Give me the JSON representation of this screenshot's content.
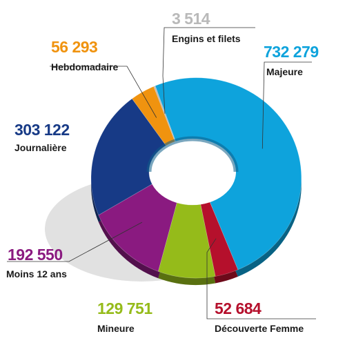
{
  "chart_data": {
    "type": "pie",
    "variant": "donut",
    "series": [
      {
        "name": "Majeure",
        "value_label": "732 279",
        "value": 732279,
        "color": "#0ea3dc"
      },
      {
        "name": "Découverte Femme",
        "value_label": "52 684",
        "value": 52684,
        "color": "#b5102c"
      },
      {
        "name": "Mineure",
        "value_label": "129 751",
        "value": 129751,
        "color": "#95bb1a"
      },
      {
        "name": "Moins 12 ans",
        "value_label": "192 550",
        "value": 192550,
        "color": "#8a1a80"
      },
      {
        "name": "Journalière",
        "value_label": "303 122",
        "value": 303122,
        "color": "#173a86"
      },
      {
        "name": "Hebdomadaire",
        "value_label": "56 293",
        "value": 56293,
        "color": "#f0930f"
      },
      {
        "name": "Engins et filets",
        "value_label": "3 514",
        "value": 3514,
        "color": "#b9b9b9"
      }
    ],
    "legend": "none",
    "grid": false
  }
}
